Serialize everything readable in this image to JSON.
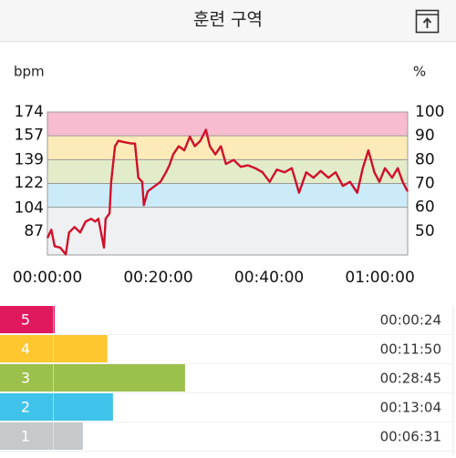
{
  "header": {
    "title": "훈련 구역"
  },
  "chart_data": [
    {
      "type": "line",
      "y_label": "bpm",
      "y2_label": "%",
      "color": "#d0102a",
      "x": [
        0,
        0.7,
        1.3,
        2.3,
        3.3,
        3.9,
        4.9,
        5.9,
        6.9,
        7.9,
        8.6,
        9.2,
        10.2,
        10.5,
        11.2,
        11.5,
        12.2,
        12.8,
        13.8,
        15.1,
        15.8,
        16.4,
        17.1,
        17.4,
        18.1,
        19.4,
        20.4,
        21.4,
        22.0,
        22.7,
        23.7,
        24.7,
        25.7,
        26.6,
        27.6,
        28.6,
        29.3,
        30.3,
        31.3,
        32.2,
        33.6,
        34.9,
        36.2,
        37.5,
        38.8,
        40.1,
        41.4,
        42.8,
        44.1,
        45.4,
        46.7,
        48.0,
        49.3,
        50.7,
        52.0,
        53.3,
        54.6,
        55.9,
        56.9,
        57.9,
        59.0,
        59.9,
        60.9,
        62.2,
        63.2,
        64.1,
        65.0
      ],
      "values": [
        82,
        88,
        76,
        75,
        70,
        86,
        90,
        86,
        94,
        96,
        94,
        96,
        75,
        96,
        100,
        123,
        149,
        153,
        152,
        151,
        151,
        126,
        123,
        106,
        116,
        120,
        123,
        130,
        135,
        143,
        149,
        146,
        156,
        149,
        153,
        161,
        149,
        143,
        149,
        136,
        139,
        134,
        135,
        133,
        130,
        123,
        132,
        130,
        133,
        115,
        130,
        126,
        131,
        126,
        130,
        120,
        123,
        115,
        133,
        146,
        130,
        123,
        133,
        126,
        133,
        123,
        116
      ],
      "xlim": [
        0,
        65
      ],
      "xticks": [
        {
          "value": 0,
          "label": "00:00:00"
        },
        {
          "value": 20,
          "label": "00:20:00"
        },
        {
          "value": 40,
          "label": "00:40:00"
        },
        {
          "value": 60,
          "label": "01:00:00"
        }
      ],
      "ylim": [
        69.6,
        174
      ],
      "yticks": [
        174,
        157,
        139,
        122,
        104,
        87
      ],
      "y2lim": [
        40,
        100
      ],
      "y2ticks": [
        100,
        90,
        80,
        70,
        60,
        50
      ],
      "bands": [
        {
          "from": 90,
          "to": 100,
          "color": "#f7bcd0"
        },
        {
          "from": 80,
          "to": 90,
          "color": "#fcebb8"
        },
        {
          "from": 70,
          "to": 80,
          "color": "#e2ecc9"
        },
        {
          "from": 60,
          "to": 70,
          "color": "#cbebf8"
        },
        {
          "from": 40,
          "to": 60,
          "color": "#eff0f1"
        }
      ]
    },
    {
      "type": "hbar",
      "categories": [
        "5",
        "4",
        "3",
        "2",
        "1"
      ],
      "values": [
        24,
        710,
        1725,
        784,
        391
      ],
      "value_labels": [
        "00:00:24",
        "00:11:50",
        "00:28:45",
        "00:13:04",
        "00:06:31"
      ],
      "colors": [
        "#e0195e",
        "#fec62f",
        "#9cc04c",
        "#3fc3ea",
        "#c5c9cc"
      ]
    }
  ]
}
